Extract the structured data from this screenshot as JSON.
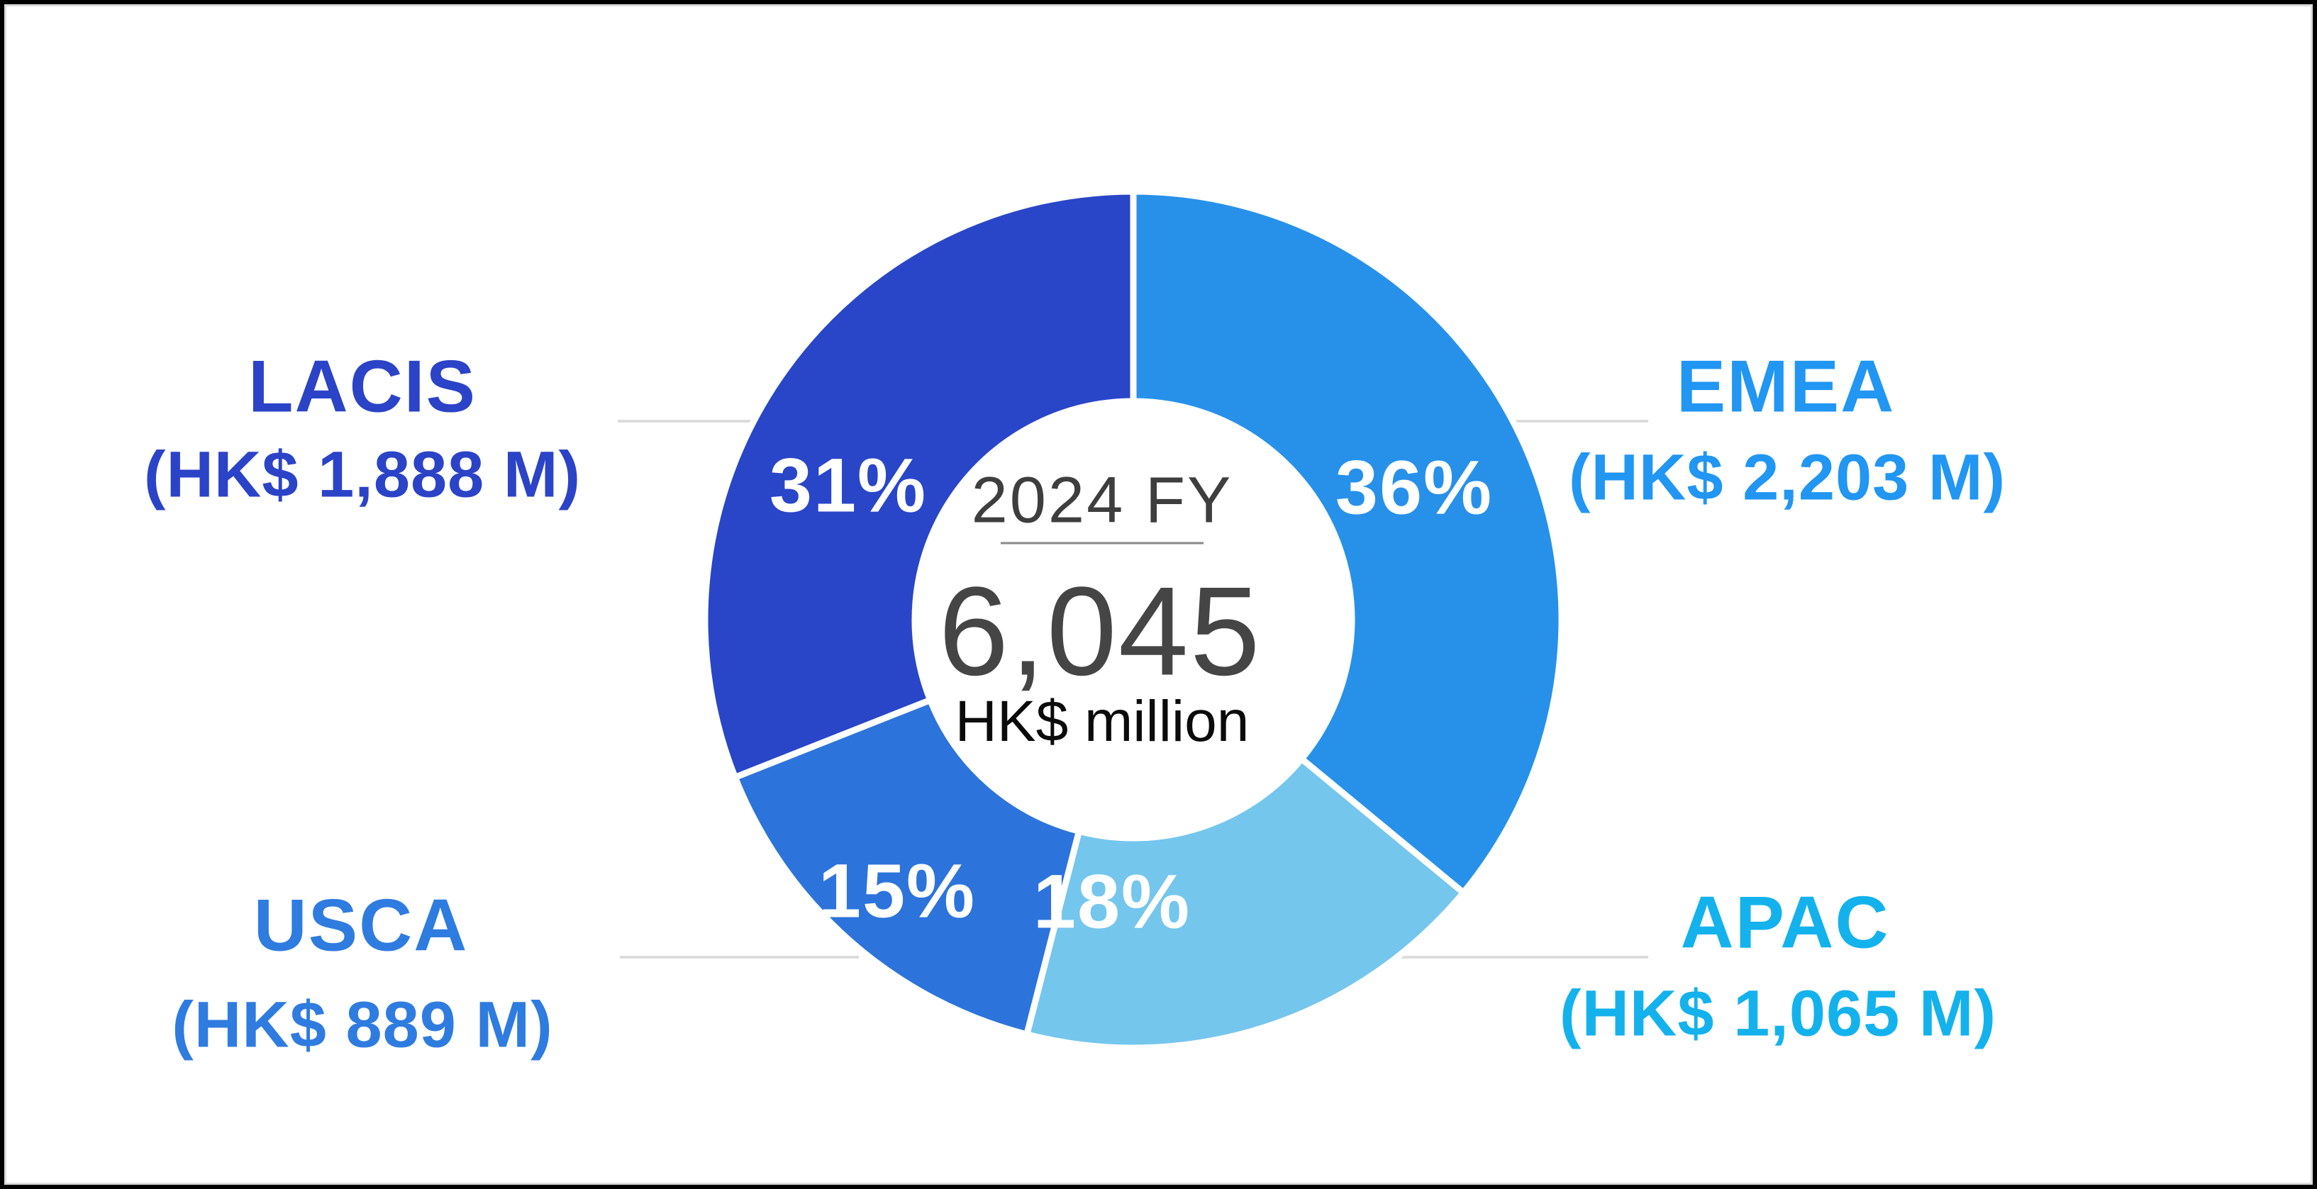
{
  "chart_data": {
    "type": "donut",
    "title": "2024 FY",
    "center": {
      "period": "2024 FY",
      "total": "6,045",
      "unit": "HK$ million"
    },
    "direction": "clockwise",
    "start_angle_deg": 0,
    "donut_hole_ratio": 0.51,
    "separator_color": "#ffffff",
    "segments": [
      {
        "name": "EMEA",
        "pct": 36,
        "pct_label": "36%",
        "value_hkd_m": 2203,
        "amount_label": "(HK$ 2,203 M)",
        "color": "#2791ea",
        "label_color": "#2196f3"
      },
      {
        "name": "APAC",
        "pct": 18,
        "pct_label": "18%",
        "value_hkd_m": 1065,
        "amount_label": "(HK$ 1,065 M)",
        "color": "#74c6ed",
        "label_color": "#14b2ec"
      },
      {
        "name": "USCA",
        "pct": 15,
        "pct_label": "15%",
        "value_hkd_m": 889,
        "amount_label": "(HK$ 889 M)",
        "color": "#2c74db",
        "label_color": "#2f7ce0"
      },
      {
        "name": "LACIS",
        "pct": 31,
        "pct_label": "31%",
        "value_hkd_m": 1888,
        "amount_label": "(HK$ 1,888 M)",
        "color": "#2946c8",
        "label_color": "#2b43c7"
      }
    ]
  }
}
